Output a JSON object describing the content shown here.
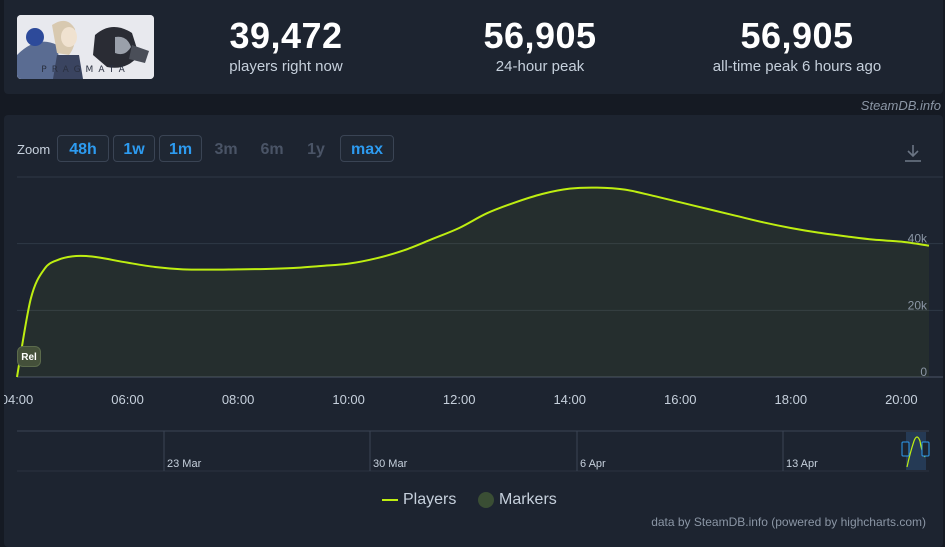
{
  "header": {
    "game_logo_text": "PRAGMATA",
    "stats": [
      {
        "value": "39,472",
        "label": "players right now"
      },
      {
        "value": "56,905",
        "label": "24-hour peak"
      },
      {
        "value": "56,905",
        "label": "all-time peak 6 hours ago"
      }
    ],
    "credit": "SteamDB.info"
  },
  "zoom": {
    "label": "Zoom",
    "buttons": [
      {
        "label": "48h",
        "state": "active"
      },
      {
        "label": "1w",
        "state": "active"
      },
      {
        "label": "1m",
        "state": "active"
      },
      {
        "label": "3m",
        "state": "disabled"
      },
      {
        "label": "6m",
        "state": "disabled"
      },
      {
        "label": "1y",
        "state": "disabled"
      },
      {
        "label": "max",
        "state": "active"
      }
    ]
  },
  "chart_data": {
    "type": "area",
    "series": [
      {
        "name": "Players",
        "color": "#beee11",
        "x": [
          "04:00",
          "04:15",
          "04:30",
          "04:45",
          "05:00",
          "05:15",
          "05:30",
          "06:00",
          "06:30",
          "07:00",
          "07:30",
          "08:00",
          "08:30",
          "09:00",
          "09:30",
          "10:00",
          "10:30",
          "11:00",
          "11:30",
          "12:00",
          "12:30",
          "13:00",
          "13:30",
          "14:00",
          "14:30",
          "15:00",
          "15:30",
          "16:00",
          "16:30",
          "17:00",
          "17:30",
          "18:00",
          "18:30",
          "19:00",
          "19:30",
          "20:00",
          "20:30"
        ],
        "y": [
          0,
          23500,
          32500,
          35200,
          36200,
          36300,
          35800,
          34300,
          33000,
          32300,
          32200,
          32300,
          32400,
          32700,
          33300,
          34000,
          35600,
          38000,
          41300,
          44700,
          49100,
          52300,
          54900,
          56500,
          56800,
          56200,
          54400,
          52400,
          50400,
          48400,
          46400,
          44700,
          43300,
          42200,
          41200,
          40600,
          39400
        ]
      }
    ],
    "markers": [
      {
        "label": "Rel",
        "x": "04:00"
      }
    ],
    "x_ticks": [
      "04:00",
      "06:00",
      "08:00",
      "10:00",
      "12:00",
      "14:00",
      "16:00",
      "18:00",
      "20:00"
    ],
    "y_ticks": [
      "0",
      "20k",
      "40k"
    ],
    "ylim": [
      0,
      60000
    ],
    "grid": true,
    "navigator_labels": [
      "23 Mar",
      "30 Mar",
      "6 Apr",
      "13 Apr"
    ],
    "legend": [
      "Players",
      "Markers"
    ],
    "legend_position": "bottom-center"
  },
  "footer": {
    "credit": "data by SteamDB.info (powered by highcharts.com)"
  }
}
